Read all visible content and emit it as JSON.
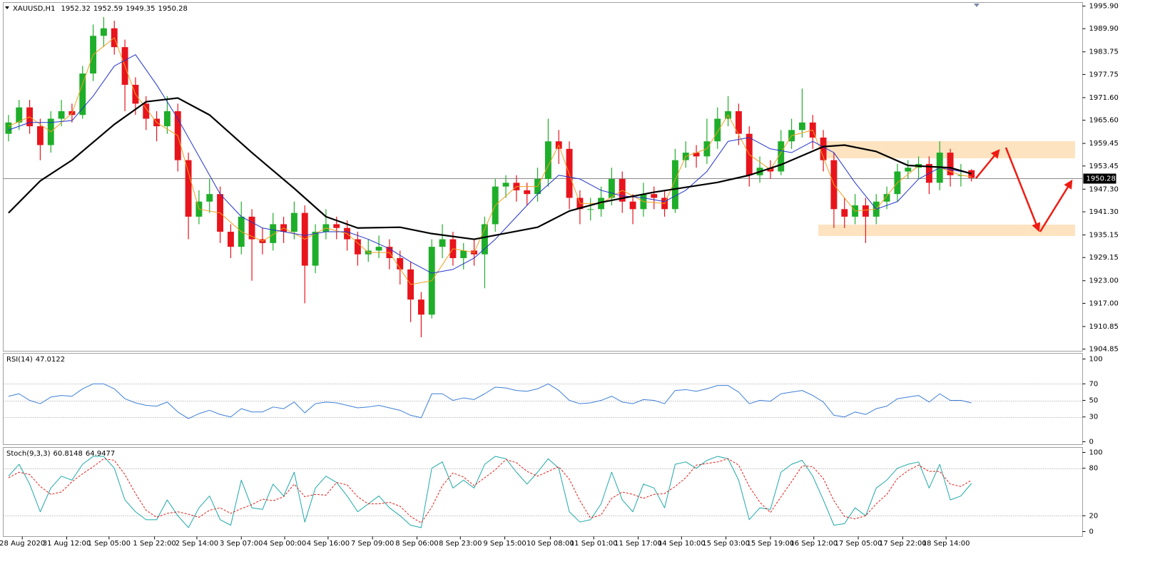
{
  "chart_data": [
    {
      "type": "candlestick",
      "title": "XAUUSD,H1",
      "open": [
        1962,
        1965,
        1969,
        1964,
        1959,
        1966,
        1968,
        1967,
        1978,
        1988,
        1990,
        1985,
        1975,
        1970,
        1966,
        1964,
        1968,
        1955,
        1940,
        1944,
        1946,
        1936,
        1932,
        1940,
        1934,
        1933,
        1938,
        1936,
        1941,
        1927,
        1936,
        1938,
        1937,
        1934,
        1930,
        1931,
        1932,
        1929,
        1926,
        1918,
        1914,
        1932,
        1934,
        1929,
        1931,
        1930,
        1938,
        1948,
        1949,
        1947,
        1946,
        1950,
        1960,
        1958,
        1945,
        1942,
        1942,
        1945,
        1950,
        1944,
        1942,
        1946,
        1945,
        1942,
        1955,
        1957,
        1956,
        1960,
        1966,
        1968,
        1962,
        1951,
        1953,
        1952,
        1960,
        1963,
        1965,
        1961,
        1955,
        1942,
        1940,
        1943,
        1940,
        1944,
        1946,
        1952,
        1953,
        1954,
        1949,
        1957,
        1951,
        1952.32
      ],
      "high": [
        1967,
        1971,
        1971,
        1966,
        1968,
        1971,
        1970,
        1980,
        1991,
        1993,
        1992,
        1987,
        1977,
        1972,
        1968,
        1972,
        1970,
        1957,
        1947,
        1950,
        1948,
        1938,
        1944,
        1942,
        1937,
        1941,
        1940,
        1944,
        1943,
        1938,
        1942,
        1940,
        1939,
        1936,
        1934,
        1935,
        1934,
        1931,
        1928,
        1920,
        1934,
        1938,
        1936,
        1933,
        1934,
        1940,
        1950,
        1951,
        1951,
        1949,
        1953,
        1966,
        1963,
        1960,
        1947,
        1945,
        1948,
        1953,
        1952,
        1946,
        1949,
        1948,
        1947,
        1958,
        1960,
        1959,
        1966,
        1969,
        1972,
        1970,
        1964,
        1956,
        1955,
        1963,
        1966,
        1974,
        1967,
        1963,
        1957,
        1945,
        1946,
        1945,
        1946,
        1948,
        1954,
        1955,
        1956,
        1956,
        1960,
        1958,
        1954,
        1952.59
      ],
      "low": [
        1960,
        1963,
        1962,
        1955,
        1957,
        1964,
        1965,
        1966,
        1976,
        1985,
        1983,
        1968,
        1967,
        1963,
        1960,
        1962,
        1952,
        1934,
        1938,
        1941,
        1933,
        1929,
        1930,
        1923,
        1930,
        1931,
        1933,
        1934,
        1917,
        1925,
        1934,
        1934,
        1931,
        1927,
        1928,
        1929,
        1926,
        1922,
        1912,
        1908,
        1913,
        1929,
        1927,
        1926,
        1927,
        1921,
        1936,
        1945,
        1944,
        1943,
        1944,
        1948,
        1954,
        1942,
        1938,
        1939,
        1940,
        1943,
        1941,
        1938,
        1940,
        1942,
        1940,
        1941,
        1953,
        1953,
        1954,
        1958,
        1964,
        1959,
        1948,
        1949,
        1950,
        1951,
        1958,
        1961,
        1958,
        1952,
        1937,
        1937,
        1938,
        1933,
        1938,
        1942,
        1944,
        1950,
        1950,
        1946,
        1947,
        1948,
        1948,
        1949.35
      ],
      "close": [
        1965,
        1969,
        1964,
        1959,
        1966,
        1968,
        1967,
        1978,
        1988,
        1990,
        1985,
        1975,
        1970,
        1966,
        1964,
        1968,
        1955,
        1940,
        1944,
        1946,
        1936,
        1932,
        1940,
        1934,
        1933,
        1938,
        1936,
        1941,
        1927,
        1936,
        1938,
        1937,
        1934,
        1930,
        1931,
        1932,
        1929,
        1926,
        1918,
        1914,
        1932,
        1934,
        1929,
        1931,
        1930,
        1938,
        1948,
        1949,
        1947,
        1946,
        1950,
        1960,
        1958,
        1945,
        1942,
        1942,
        1945,
        1950,
        1944,
        1942,
        1946,
        1945,
        1942,
        1955,
        1957,
        1956,
        1960,
        1966,
        1968,
        1962,
        1951,
        1953,
        1952,
        1960,
        1963,
        1965,
        1961,
        1955,
        1942,
        1940,
        1943,
        1940,
        1944,
        1946,
        1952,
        1953,
        1954,
        1949,
        1957,
        1951,
        1951,
        1950.28
      ],
      "up_color": "#1fae2a",
      "down_color": "#e8141c",
      "price_line_color": "#8c8c8c",
      "moving_averages": [
        {
          "color": "#f0a020",
          "width": 1,
          "x": [
            0,
            2,
            4,
            6,
            8,
            10,
            12,
            14,
            16,
            18,
            20,
            22,
            24,
            26,
            28,
            30,
            32,
            34,
            36,
            38,
            40,
            42,
            44,
            46,
            48,
            50,
            52,
            54,
            56,
            58,
            60,
            62,
            64,
            66,
            68,
            70,
            72,
            74,
            76,
            78,
            80,
            82,
            84,
            86,
            88,
            90,
            91
          ],
          "values": [
            1964,
            1966.5,
            1962.5,
            1967.5,
            1983,
            1987.5,
            1972.5,
            1965,
            1961.5,
            1942,
            1941,
            1936,
            1933.5,
            1937,
            1934,
            1937,
            1935.5,
            1930.5,
            1930.5,
            1922,
            1923,
            1931.5,
            1930.5,
            1943,
            1948,
            1948,
            1959,
            1943.5,
            1943.5,
            1947,
            1944,
            1943.5,
            1956,
            1958,
            1967,
            1956.5,
            1952.5,
            1961.5,
            1963,
            1948.5,
            1941.5,
            1942,
            1949,
            1953.5,
            1953,
            1951,
            1950.6
          ]
        },
        {
          "color": "#2233cc",
          "width": 1,
          "x": [
            0,
            2,
            4,
            6,
            8,
            10,
            12,
            14,
            16,
            18,
            20,
            22,
            24,
            26,
            28,
            30,
            32,
            34,
            36,
            38,
            40,
            42,
            44,
            46,
            48,
            50,
            52,
            54,
            56,
            58,
            60,
            62,
            64,
            66,
            68,
            70,
            72,
            74,
            76,
            78,
            80,
            82,
            84,
            86,
            88,
            90,
            91
          ],
          "values": [
            1963,
            1965,
            1965,
            1965.5,
            1972,
            1980,
            1983,
            1975,
            1966,
            1956,
            1946,
            1940,
            1937,
            1936,
            1935,
            1936,
            1936,
            1934,
            1931.5,
            1928,
            1925,
            1926,
            1929,
            1934,
            1940,
            1946,
            1951,
            1950,
            1947,
            1945.5,
            1945,
            1944,
            1947,
            1952,
            1960,
            1961,
            1958,
            1957,
            1960,
            1957,
            1949,
            1942,
            1944,
            1950,
            1953,
            1952,
            1951.5
          ]
        },
        {
          "color": "#000000",
          "width": 2.2,
          "x": [
            0,
            3,
            6,
            10,
            13,
            16,
            19,
            23,
            27,
            30,
            33,
            37,
            40,
            44,
            50,
            53,
            56,
            61,
            67,
            70,
            73,
            77,
            79,
            82,
            85,
            89,
            91
          ],
          "values": [
            1941,
            1949.5,
            1955,
            1964.5,
            1970.5,
            1971.5,
            1967,
            1957,
            1947.5,
            1940,
            1937,
            1937.2,
            1935.5,
            1934,
            1937.2,
            1941.5,
            1943.8,
            1946.5,
            1949.1,
            1951,
            1953.8,
            1958.6,
            1959,
            1957.3,
            1953.6,
            1953,
            1951.4
          ]
        }
      ],
      "xlim": [
        -0.5,
        101.5
      ],
      "xticks": [
        {
          "value": 1.3,
          "label": "28 Aug 2020"
        },
        {
          "value": 5.5,
          "label": "31 Aug 12:00"
        },
        {
          "value": 9.5,
          "label": "1 Sep 05:00"
        },
        {
          "value": 13.8,
          "label": "1 Sep 22:00"
        },
        {
          "value": 17.8,
          "label": "2 Sep 14:00"
        },
        {
          "value": 22.0,
          "label": "3 Sep 07:00"
        },
        {
          "value": 26.1,
          "label": "4 Sep 00:00"
        },
        {
          "value": 30.2,
          "label": "4 Sep 16:00"
        },
        {
          "value": 34.4,
          "label": "7 Sep 09:00"
        },
        {
          "value": 38.6,
          "label": "8 Sep 06:00"
        },
        {
          "value": 42.7,
          "label": "8 Sep 23:00"
        },
        {
          "value": 46.9,
          "label": "9 Sep 15:00"
        },
        {
          "value": 51.2,
          "label": "10 Sep 08:00"
        },
        {
          "value": 55.3,
          "label": "11 Sep 01:00"
        },
        {
          "value": 59.5,
          "label": "11 Sep 17:00"
        },
        {
          "value": 63.6,
          "label": "14 Sep 10:00"
        },
        {
          "value": 67.8,
          "label": "15 Sep 03:00"
        },
        {
          "value": 72.0,
          "label": "15 Sep 19:00"
        },
        {
          "value": 76.1,
          "label": "16 Sep 12:00"
        },
        {
          "value": 80.3,
          "label": "17 Sep 05:00"
        },
        {
          "value": 84.5,
          "label": "17 Sep 22:00"
        },
        {
          "value": 88.6,
          "label": "18 Sep 14:00"
        }
      ],
      "ylim": [
        1904.3,
        1996.85
      ],
      "yticks": [
        {
          "value": 1995.9,
          "label": "1995.90"
        },
        {
          "value": 1989.9,
          "label": "1989.90"
        },
        {
          "value": 1983.75,
          "label": "1983.75"
        },
        {
          "value": 1977.75,
          "label": "1977.75"
        },
        {
          "value": 1971.6,
          "label": "1971.60"
        },
        {
          "value": 1965.6,
          "label": "1965.60"
        },
        {
          "value": 1959.45,
          "label": "1959.45"
        },
        {
          "value": 1953.45,
          "label": "1953.45"
        },
        {
          "value": 1947.3,
          "label": "1947.30"
        },
        {
          "value": 1941.3,
          "label": "1941.30"
        },
        {
          "value": 1935.15,
          "label": "1935.15"
        },
        {
          "value": 1929.15,
          "label": "1929.15"
        },
        {
          "value": 1923,
          "label": "1923.00"
        },
        {
          "value": 1917,
          "label": "1917.00"
        },
        {
          "value": 1910.85,
          "label": "1910.85"
        },
        {
          "value": 1904.85,
          "label": "1904.85"
        }
      ]
    },
    {
      "type": "line",
      "title": "RSI(14)",
      "series": [
        {
          "color": "#3d7fd6",
          "values": [
            55,
            58,
            50,
            46,
            54,
            56,
            55,
            64,
            70,
            70,
            64,
            52,
            47,
            44,
            43,
            48,
            36,
            28,
            34,
            38,
            33,
            30,
            40,
            36,
            36,
            42,
            40,
            48,
            35,
            46,
            48,
            47,
            44,
            41,
            42,
            44,
            41,
            38,
            32,
            29,
            58,
            58,
            50,
            53,
            51,
            58,
            66,
            65,
            62,
            61,
            64,
            70,
            62,
            50,
            46,
            47,
            50,
            55,
            48,
            46,
            51,
            50,
            46,
            62,
            63,
            61,
            64,
            68,
            68,
            60,
            46,
            50,
            49,
            58,
            60,
            62,
            56,
            48,
            32,
            30,
            36,
            33,
            40,
            43,
            52,
            54,
            56,
            48,
            58,
            50,
            50,
            47.0122
          ]
        }
      ],
      "ylim": [
        -3.4,
        106.9
      ],
      "yticks": [
        0,
        30,
        50,
        70,
        100
      ],
      "levels": [
        30,
        50,
        70
      ]
    },
    {
      "type": "line",
      "title": "Stoch(9,3,3)",
      "series": [
        {
          "color": "#20a8a8",
          "values": [
            70,
            85,
            60,
            25,
            55,
            70,
            65,
            85,
            95,
            95,
            80,
            40,
            25,
            15,
            15,
            40,
            20,
            5,
            30,
            45,
            15,
            8,
            65,
            30,
            28,
            60,
            45,
            75,
            12,
            55,
            70,
            62,
            45,
            25,
            35,
            45,
            30,
            20,
            8,
            5,
            80,
            88,
            55,
            65,
            55,
            85,
            95,
            92,
            75,
            60,
            75,
            92,
            80,
            25,
            12,
            15,
            35,
            75,
            40,
            25,
            60,
            55,
            30,
            85,
            88,
            80,
            90,
            95,
            92,
            65,
            15,
            30,
            28,
            75,
            85,
            90,
            70,
            40,
            8,
            10,
            30,
            20,
            55,
            65,
            80,
            85,
            88,
            55,
            85,
            40,
            45,
            60.8148
          ]
        },
        {
          "color": "#e0201b",
          "dash": true,
          "values": [
            68,
            75,
            72,
            57,
            47,
            50,
            63,
            73,
            82,
            92,
            90,
            72,
            48,
            27,
            18,
            23,
            25,
            22,
            18,
            27,
            30,
            23,
            29,
            34,
            41,
            39,
            44,
            60,
            44,
            47,
            46,
            62,
            59,
            44,
            35,
            35,
            37,
            32,
            19,
            11,
            31,
            58,
            74,
            69,
            58,
            68,
            78,
            91,
            87,
            76,
            70,
            76,
            82,
            66,
            39,
            17,
            21,
            42,
            50,
            47,
            42,
            47,
            48,
            57,
            68,
            84,
            86,
            88,
            92,
            84,
            57,
            37,
            24,
            44,
            63,
            83,
            82,
            67,
            39,
            19,
            16,
            20,
            35,
            47,
            67,
            77,
            84,
            76,
            76,
            60,
            57,
            64.9477
          ]
        }
      ],
      "ylim": [
        -6.3,
        106.3
      ],
      "yticks": [
        0,
        20,
        80,
        100
      ],
      "levels": [
        20,
        80
      ]
    }
  ]
}
